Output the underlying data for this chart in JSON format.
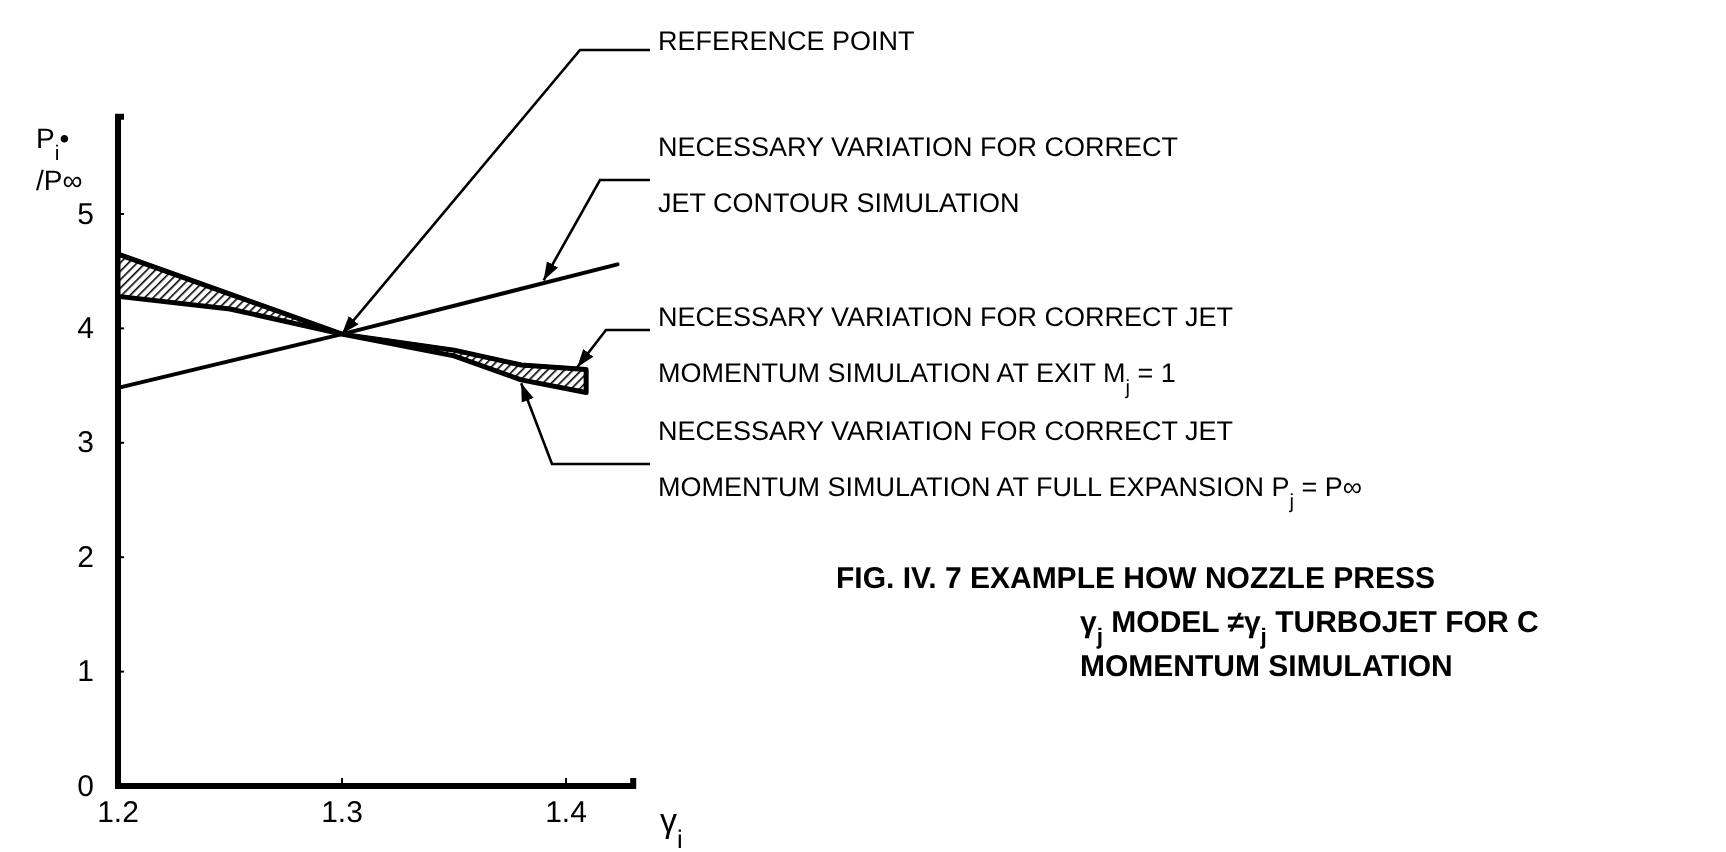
{
  "chart_data": {
    "type": "line",
    "title": "FIG. IV.  7  EXAMPLE HOW NOZZLE PRESS\nγ$_{j}$ MODEL ≠γ$_{j}$ TURBOJET FOR C\nMOMENTUM SIMULATION",
    "xlabel": "γ$_{i}$",
    "ylabel": "P$_{i}$•/P∞",
    "series": [
      {
        "color": "#000000",
        "x": [
          1.2,
          1.3,
          1.423
        ],
        "values": [
          3.48,
          3.95,
          4.56
        ]
      },
      {
        "color": "#000000",
        "x": [
          1.2,
          1.25,
          1.3,
          1.35,
          1.38,
          1.409
        ],
        "values": [
          4.65,
          4.3,
          3.95,
          3.81,
          3.68,
          3.64
        ],
        "lower": [
          4.28,
          4.17,
          3.95,
          3.76,
          3.55,
          3.44
        ],
        "upper": [
          4.65,
          4.3,
          3.95,
          3.81,
          3.68,
          3.64
        ]
      }
    ],
    "annotations": [
      {
        "text": "REFERENCE POINT",
        "x": 1.3,
        "y": 3.95
      },
      {
        "text": "NECESSARY VARIATION FOR CORRECT\nJET CONTOUR SIMULATION",
        "x": 1.39,
        "y": 4.42
      },
      {
        "text": "NECESSARY VARIATION FOR CORRECT JET\nMOMENTUM SIMULATION AT EXIT M$_{j}$ = 1",
        "x": 1.405,
        "y": 3.66
      },
      {
        "text": "NECESSARY VARIATION FOR CORRECT JET\nMOMENTUM SIMULATION AT FULL EXPANSION P$_{j}$ = P∞",
        "x": 1.38,
        "y": 3.52
      }
    ],
    "xlim": [
      1.2,
      1.43
    ],
    "ylim": [
      0,
      5.85
    ],
    "xticks": [
      1.2,
      1.3,
      1.4
    ],
    "yticks": [
      0,
      1,
      2,
      3,
      4,
      5
    ],
    "grid": false
  }
}
